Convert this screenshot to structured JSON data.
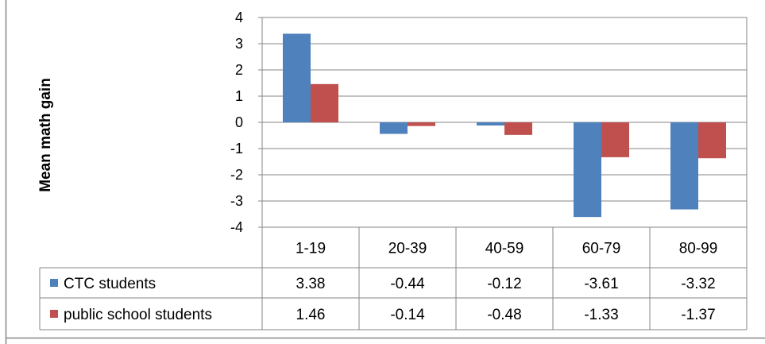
{
  "chart_data": {
    "type": "bar",
    "ylabel": "Mean math gain",
    "ylim": [
      -4,
      4
    ],
    "yticks": [
      "4",
      "3",
      "2",
      "1",
      "0",
      "-1",
      "-2",
      "-3",
      "-4"
    ],
    "categories": [
      "1-19",
      "20-39",
      "40-59",
      "60-79",
      "80-99"
    ],
    "grid": true,
    "legend": "data-table-left",
    "series": [
      {
        "name": "CTC students",
        "color": "#4f81bd",
        "values": [
          3.38,
          -0.44,
          -0.12,
          -3.61,
          -3.32
        ],
        "labels": [
          "3.38",
          "-0.44",
          "-0.12",
          "-3.61",
          "-3.32"
        ]
      },
      {
        "name": "public school students",
        "color": "#c0504d",
        "values": [
          1.46,
          -0.14,
          -0.48,
          -1.33,
          -1.37
        ],
        "labels": [
          "1.46",
          "-0.14",
          "-0.48",
          "-1.33",
          "-1.37"
        ]
      }
    ]
  }
}
